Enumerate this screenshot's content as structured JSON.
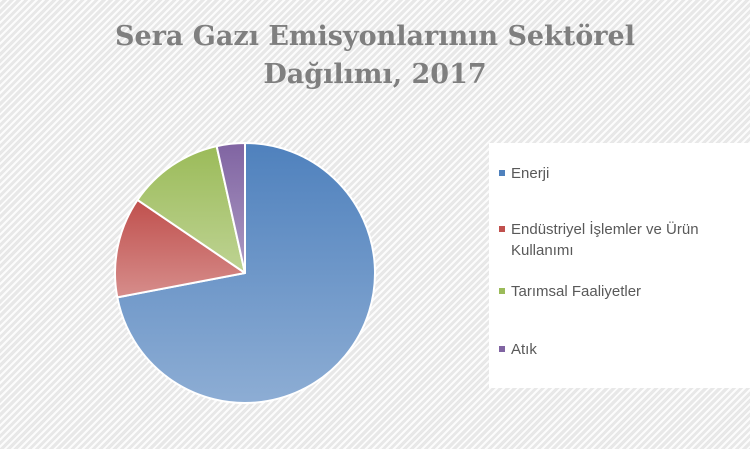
{
  "chart_data": {
    "type": "pie",
    "title": "Sera Gazı Emisyonlarının Sektörel Dağılımı, 2017",
    "title_lines": [
      "Sera Gazı Emisyonlarının Sektörel",
      "Dağılımı, 2017"
    ],
    "legend_position": "right",
    "series": [
      {
        "values": [
          72.0,
          12.5,
          12.0,
          3.5
        ],
        "categories": [
          "Enerji",
          "Endüstriyel İşlemler ve Ürün Kullanımı",
          "Tarımsal Faaliyetler",
          "Atık"
        ],
        "colors": [
          "#4f81bd",
          "#c0504d",
          "#9bbb59",
          "#8064a2"
        ]
      }
    ]
  },
  "legend": {
    "items": [
      {
        "label": "Enerji",
        "color": "#4f81bd"
      },
      {
        "label": "Endüstriyel İşlemler ve Ürün Kullanımı",
        "color": "#c0504d"
      },
      {
        "label": "Tarımsal Faaliyetler",
        "color": "#9bbb59"
      },
      {
        "label": "Atık",
        "color": "#8064a2"
      }
    ]
  }
}
